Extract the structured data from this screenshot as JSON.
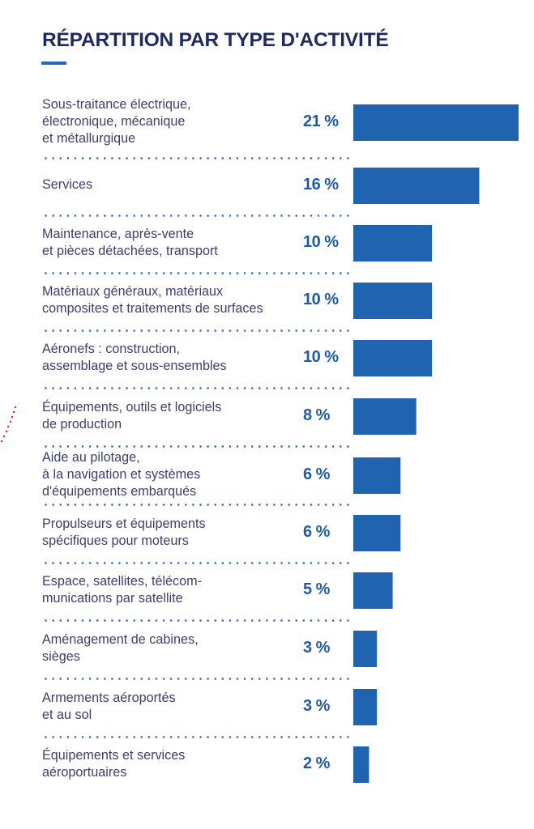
{
  "chart_data": {
    "type": "bar",
    "orientation": "horizontal",
    "title": "RÉPARTITION PAR TYPE D'ACTIVITÉ",
    "categories": [
      [
        "Sous-traitance électrique,",
        "électronique, mécanique",
        "et métallurgique"
      ],
      [
        "Services"
      ],
      [
        "Maintenance, après-vente",
        "et pièces détachées, transport"
      ],
      [
        "Matériaux généraux, matériaux",
        "composites et traitements de surfaces"
      ],
      [
        "Aéronefs : construction,",
        "assemblage et sous-ensembles"
      ],
      [
        "Équipements, outils et logiciels",
        "de production"
      ],
      [
        "Aide au pilotage,",
        "à la navigation et systèmes",
        "d'équipements embarqués"
      ],
      [
        "Propulseurs et équipements",
        "spécifiques pour moteurs"
      ],
      [
        "Espace, satellites, télécom-",
        "munications par satellite"
      ],
      [
        "Aménagement de cabines,",
        "sièges"
      ],
      [
        "Armements aéroportés",
        "et au sol"
      ],
      [
        "Équipements et services",
        "aéroportuaires"
      ]
    ],
    "values": [
      21,
      16,
      10,
      10,
      10,
      8,
      6,
      6,
      5,
      3,
      3,
      2
    ],
    "value_labels": [
      "21 %",
      "16 %",
      "10 %",
      "10 %",
      "10 %",
      "8 %",
      "6 %",
      "6 %",
      "5 %",
      "3 %",
      "3 %",
      "2 %"
    ],
    "unit": "%",
    "xlim": [
      0,
      21
    ],
    "grid": false,
    "legend": "none"
  },
  "colors": {
    "title": "#1d2a63",
    "bar": "#1f63b1",
    "percent": "#1f5ba8",
    "label": "#3c3f6e",
    "separator": "#2a6ab8",
    "accent_rule": "#2468b8",
    "decor_dots": "#e0202a"
  }
}
